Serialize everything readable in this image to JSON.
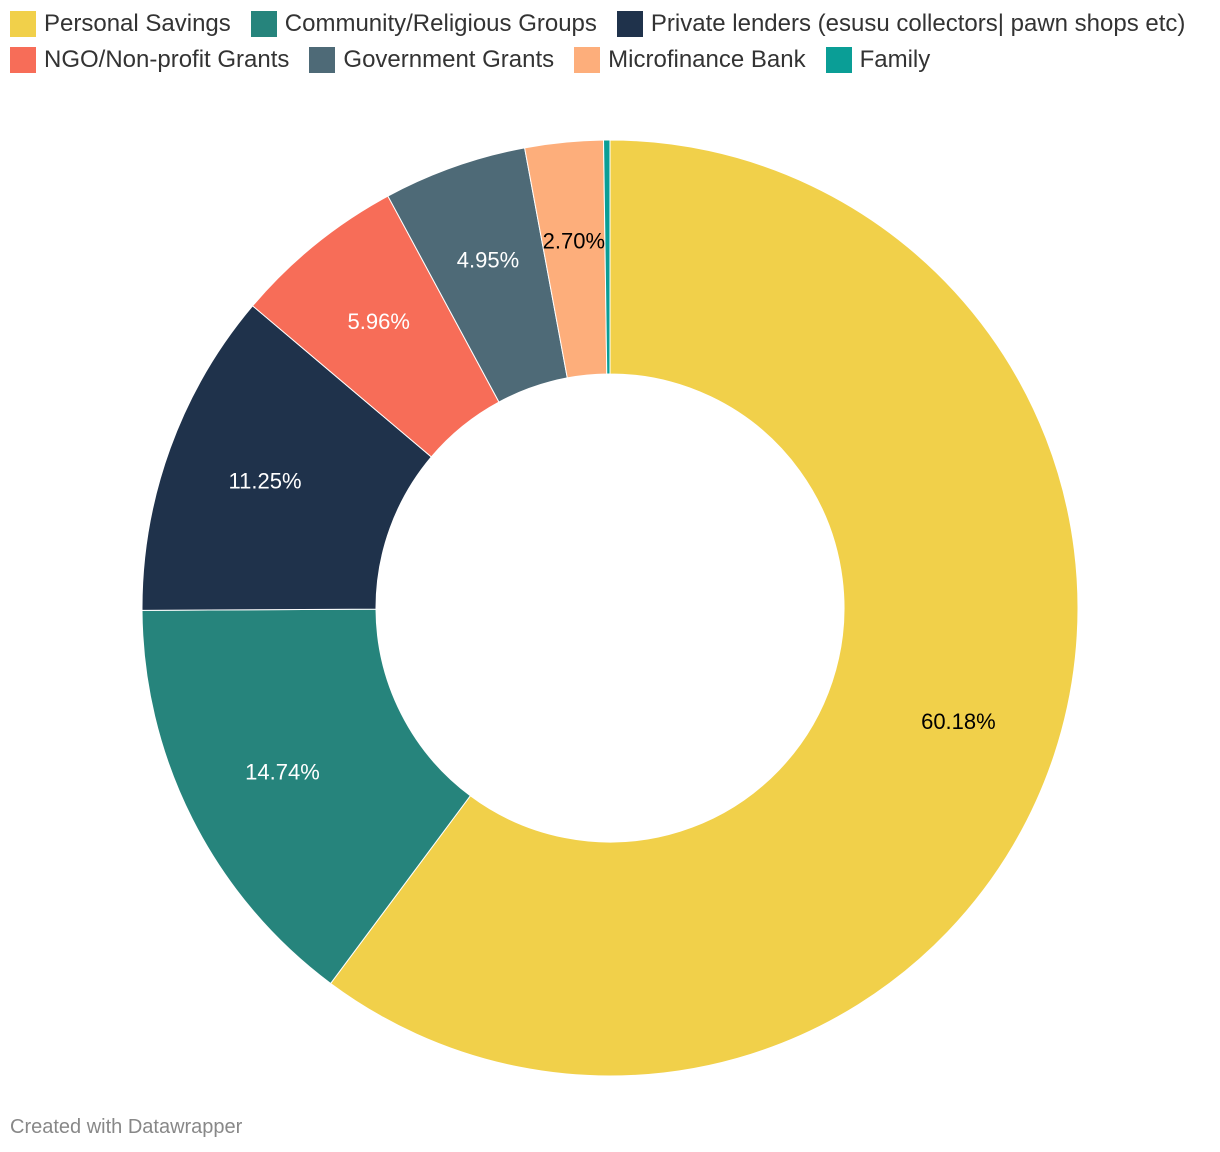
{
  "chart_data": {
    "type": "pie",
    "variant": "donut",
    "title": "",
    "legend_position": "top",
    "series": [
      {
        "name": "Personal Savings",
        "value": 60.18,
        "label": "60.18%",
        "color": "#f1d04a",
        "label_color": "#000000"
      },
      {
        "name": "Community/Religious Groups",
        "value": 14.74,
        "label": "14.74%",
        "color": "#26847c",
        "label_color": "#ffffff"
      },
      {
        "name": "Private lenders (esusu collectors| pawn shops etc)",
        "value": 11.25,
        "label": "11.25%",
        "color": "#1f324b",
        "label_color": "#ffffff"
      },
      {
        "name": "NGO/Non-profit Grants",
        "value": 5.96,
        "label": "5.96%",
        "color": "#f76d58",
        "label_color": "#ffffff"
      },
      {
        "name": "Government Grants",
        "value": 4.95,
        "label": "4.95%",
        "color": "#4e6a77",
        "label_color": "#ffffff"
      },
      {
        "name": "Microfinance Bank",
        "value": 2.7,
        "label": "2.70%",
        "color": "#fdae7b",
        "label_color": "#000000"
      },
      {
        "name": "Family",
        "value": 0.22,
        "label": "",
        "color": "#0a9e96",
        "label_color": "#000000"
      }
    ]
  },
  "footer": {
    "credit": "Created with Datawrapper"
  }
}
